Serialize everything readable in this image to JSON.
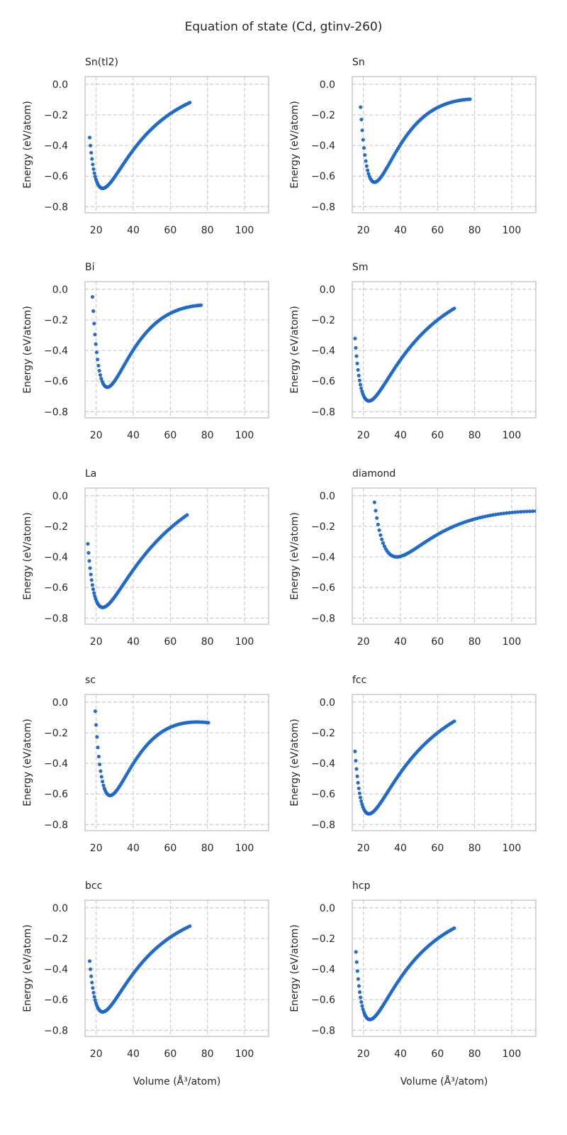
{
  "suptitle": "Equation of state (Cd, gtinv-260)",
  "colors": {
    "marker": "#1f6fd6",
    "marker_edge": "#1656a8",
    "grid": "#cccccc",
    "frame": "#cccccc"
  },
  "chart_data": [
    {
      "type": "scatter",
      "title": "Sn(tl2)",
      "xlabel": "",
      "ylabel": "Energy (eV/atom)",
      "xlim": [
        14,
        113
      ],
      "ylim": [
        -0.84,
        0.05
      ],
      "xticks": [
        "20",
        "40",
        "60",
        "80",
        "100"
      ],
      "yticks": [
        "0.0",
        "−0.2",
        "−0.4",
        "−0.6",
        "−0.8"
      ],
      "grid": true,
      "curve": {
        "vmin": 16.5,
        "v0": 23.5,
        "vmax": 70.5,
        "emin": -0.68,
        "eleft": -0.36,
        "eright": -0.12,
        "n": 78
      }
    },
    {
      "type": "scatter",
      "title": "Sn",
      "xlabel": "",
      "ylabel": "Energy (eV/atom)",
      "xlim": [
        14,
        113
      ],
      "ylim": [
        -0.84,
        0.05
      ],
      "xticks": [
        "20",
        "40",
        "60",
        "80",
        "100"
      ],
      "yticks": [
        "0.0",
        "−0.2",
        "−0.4",
        "−0.6",
        "−0.8"
      ],
      "grid": true,
      "curve": {
        "vmin": 18.5,
        "v0": 26.0,
        "vmax": 77.5,
        "emin": -0.64,
        "eleft": -0.08,
        "eright": -0.1,
        "n": 78
      }
    },
    {
      "type": "scatter",
      "title": "Bi",
      "xlabel": "",
      "ylabel": "Energy (eV/atom)",
      "xlim": [
        14,
        113
      ],
      "ylim": [
        -0.84,
        0.05
      ],
      "xticks": [
        "20",
        "40",
        "60",
        "80",
        "100"
      ],
      "yticks": [
        "0.0",
        "−0.2",
        "−0.4",
        "−0.6",
        "−0.8"
      ],
      "grid": true,
      "curve": {
        "vmin": 18.0,
        "v0": 26.0,
        "vmax": 76.5,
        "emin": -0.64,
        "eleft": -0.08,
        "eright": -0.1,
        "n": 78
      }
    },
    {
      "type": "scatter",
      "title": "Sm",
      "xlabel": "",
      "ylabel": "Energy (eV/atom)",
      "xlim": [
        14,
        113
      ],
      "ylim": [
        -0.84,
        0.05
      ],
      "xticks": [
        "20",
        "40",
        "60",
        "80",
        "100"
      ],
      "yticks": [
        "0.0",
        "−0.2",
        "−0.4",
        "−0.6",
        "−0.8"
      ],
      "grid": true,
      "curve": {
        "vmin": 15.5,
        "v0": 23.0,
        "vmax": 69.0,
        "emin": -0.73,
        "eleft": -0.3,
        "eright": -0.13,
        "n": 78
      }
    },
    {
      "type": "scatter",
      "title": "La",
      "xlabel": "",
      "ylabel": "Energy (eV/atom)",
      "xlim": [
        14,
        113
      ],
      "ylim": [
        -0.84,
        0.05
      ],
      "xticks": [
        "20",
        "40",
        "60",
        "80",
        "100"
      ],
      "yticks": [
        "0.0",
        "−0.2",
        "−0.4",
        "−0.6",
        "−0.8"
      ],
      "grid": true,
      "curve": {
        "vmin": 15.5,
        "v0": 23.5,
        "vmax": 69.0,
        "emin": -0.73,
        "eleft": -0.3,
        "eright": -0.13,
        "n": 78
      }
    },
    {
      "type": "scatter",
      "title": "diamond",
      "xlabel": "",
      "ylabel": "Energy (eV/atom)",
      "xlim": [
        14,
        113
      ],
      "ylim": [
        -0.84,
        0.05
      ],
      "xticks": [
        "20",
        "40",
        "60",
        "80",
        "100"
      ],
      "yticks": [
        "0.0",
        "−0.2",
        "−0.4",
        "−0.6",
        "−0.8"
      ],
      "grid": true,
      "curve": {
        "vmin": 26.0,
        "v0": 38.0,
        "vmax": 113.0,
        "emin": -0.4,
        "eleft": -0.05,
        "eright": -0.1,
        "n": 80
      }
    },
    {
      "type": "scatter",
      "title": "sc",
      "xlabel": "",
      "ylabel": "Energy (eV/atom)",
      "xlim": [
        14,
        113
      ],
      "ylim": [
        -0.84,
        0.05
      ],
      "xticks": [
        "20",
        "40",
        "60",
        "80",
        "100"
      ],
      "yticks": [
        "0.0",
        "−0.2",
        "−0.4",
        "−0.6",
        "−0.8"
      ],
      "grid": true,
      "curve": {
        "vmin": 19.5,
        "v0": 27.5,
        "vmax": 80.5,
        "emin": -0.61,
        "eleft": -0.08,
        "eright": -0.11,
        "n": 78
      }
    },
    {
      "type": "scatter",
      "title": "fcc",
      "xlabel": "",
      "ylabel": "Energy (eV/atom)",
      "xlim": [
        14,
        113
      ],
      "ylim": [
        -0.84,
        0.05
      ],
      "xticks": [
        "20",
        "40",
        "60",
        "80",
        "100"
      ],
      "yticks": [
        "0.0",
        "−0.2",
        "−0.4",
        "−0.6",
        "−0.8"
      ],
      "grid": true,
      "curve": {
        "vmin": 15.5,
        "v0": 23.0,
        "vmax": 69.0,
        "emin": -0.73,
        "eleft": -0.31,
        "eright": -0.13,
        "n": 78
      }
    },
    {
      "type": "scatter",
      "title": "bcc",
      "xlabel": "Volume (Å³/atom)",
      "ylabel": "Energy (eV/atom)",
      "xlim": [
        14,
        113
      ],
      "ylim": [
        -0.84,
        0.05
      ],
      "xticks": [
        "20",
        "40",
        "60",
        "80",
        "100"
      ],
      "yticks": [
        "0.0",
        "−0.2",
        "−0.4",
        "−0.6",
        "−0.8"
      ],
      "grid": true,
      "curve": {
        "vmin": 16.5,
        "v0": 23.5,
        "vmax": 70.5,
        "emin": -0.68,
        "eleft": -0.36,
        "eright": -0.12,
        "n": 78
      }
    },
    {
      "type": "scatter",
      "title": "hcp",
      "xlabel": "Volume (Å³/atom)",
      "ylabel": "Energy (eV/atom)",
      "xlim": [
        14,
        113
      ],
      "ylim": [
        -0.84,
        0.05
      ],
      "xticks": [
        "20",
        "40",
        "60",
        "80",
        "100"
      ],
      "yticks": [
        "0.0",
        "−0.2",
        "−0.4",
        "−0.6",
        "−0.8"
      ],
      "grid": true,
      "curve": {
        "vmin": 16.0,
        "v0": 23.5,
        "vmax": 69.0,
        "emin": -0.73,
        "eleft": -0.3,
        "eright": -0.13,
        "n": 78
      }
    }
  ]
}
